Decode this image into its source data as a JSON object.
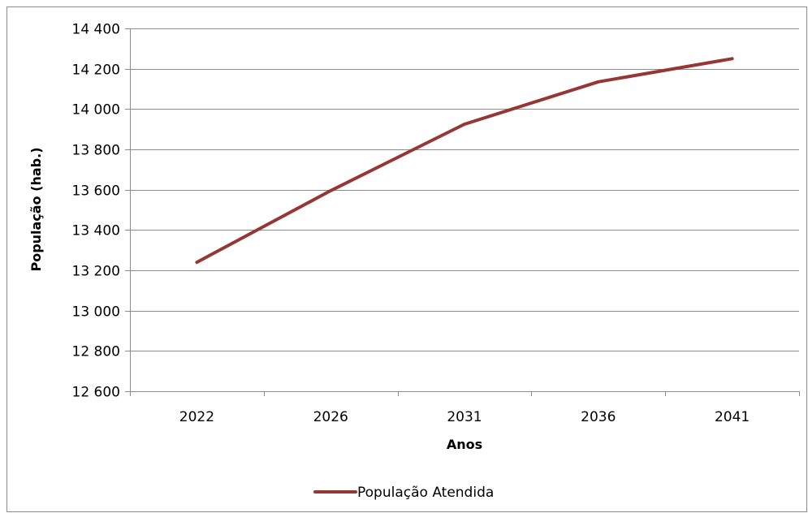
{
  "chart_data": {
    "type": "line",
    "categories": [
      "2022",
      "2026",
      "2031",
      "2036",
      "2041"
    ],
    "series": [
      {
        "name": "População Atendida",
        "values": [
          13240,
          13595,
          13925,
          14135,
          14250
        ],
        "color": "#953735"
      }
    ],
    "xlabel": "Anos",
    "ylabel": "População (hab.)",
    "ylim": [
      12600,
      14400
    ],
    "yticks": [
      12600,
      12800,
      13000,
      13200,
      13400,
      13600,
      13800,
      14000,
      14200,
      14400
    ],
    "ytick_labels": [
      "12 600",
      "12 800",
      "13 000",
      "13 200",
      "13 400",
      "13 600",
      "13 800",
      "14 000",
      "14 200",
      "14 400"
    ],
    "grid": "horizontal",
    "legend_position": "bottom"
  }
}
